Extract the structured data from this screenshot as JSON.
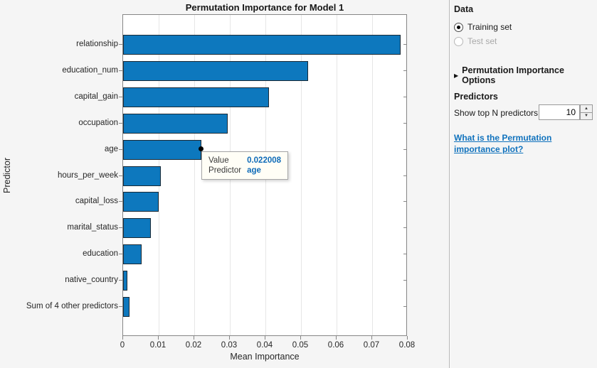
{
  "chart_data": {
    "type": "bar",
    "orientation": "horizontal",
    "title": "Permutation Importance for Model 1",
    "xlabel": "Mean Importance",
    "ylabel": "Predictor",
    "categories": [
      "relationship",
      "education_num",
      "capital_gain",
      "occupation",
      "age",
      "hours_per_week",
      "capital_loss",
      "marital_status",
      "education",
      "native_country",
      "Sum of 4 other predictors"
    ],
    "values": [
      0.078,
      0.052,
      0.041,
      0.0294,
      0.022008,
      0.0106,
      0.0099,
      0.0077,
      0.0051,
      0.0012,
      0.0018
    ],
    "xlim": [
      0,
      0.08
    ],
    "xticks": [
      0,
      0.01,
      0.02,
      0.03,
      0.04,
      0.05,
      0.06,
      0.07,
      0.08
    ],
    "xtick_labels": [
      "0",
      "0.01",
      "0.02",
      "0.03",
      "0.04",
      "0.05",
      "0.06",
      "0.07",
      "0.08"
    ],
    "grid": "vertical",
    "legend": "none",
    "bar_color": "#0d78be",
    "datatip": {
      "value_label": "Value",
      "value": "0.022008",
      "predictor_label": "Predictor",
      "predictor": "age",
      "point_x": 0.022008
    }
  },
  "sidebar": {
    "data_section": {
      "heading": "Data",
      "options": [
        {
          "label": "Training set",
          "selected": true,
          "enabled": true
        },
        {
          "label": "Test set",
          "selected": false,
          "enabled": false
        }
      ]
    },
    "options_toggle": {
      "icon": "▶",
      "label": "Permutation Importance Options",
      "collapsed": true
    },
    "predictors_section": {
      "heading": "Predictors",
      "spinner_label": "Show top N predictors",
      "spinner_value": "10",
      "spinner_up_icon": "▲",
      "spinner_down_icon": "▼"
    },
    "help_link": {
      "label": "What is the Permutation importance plot?"
    }
  },
  "colors": {
    "accent_blue": "#0d78be",
    "link_blue": "#1072bd",
    "figure_bg": "#f5f5f5",
    "plot_bg": "#ffffff",
    "disabled_gray": "#a9a9a9"
  }
}
